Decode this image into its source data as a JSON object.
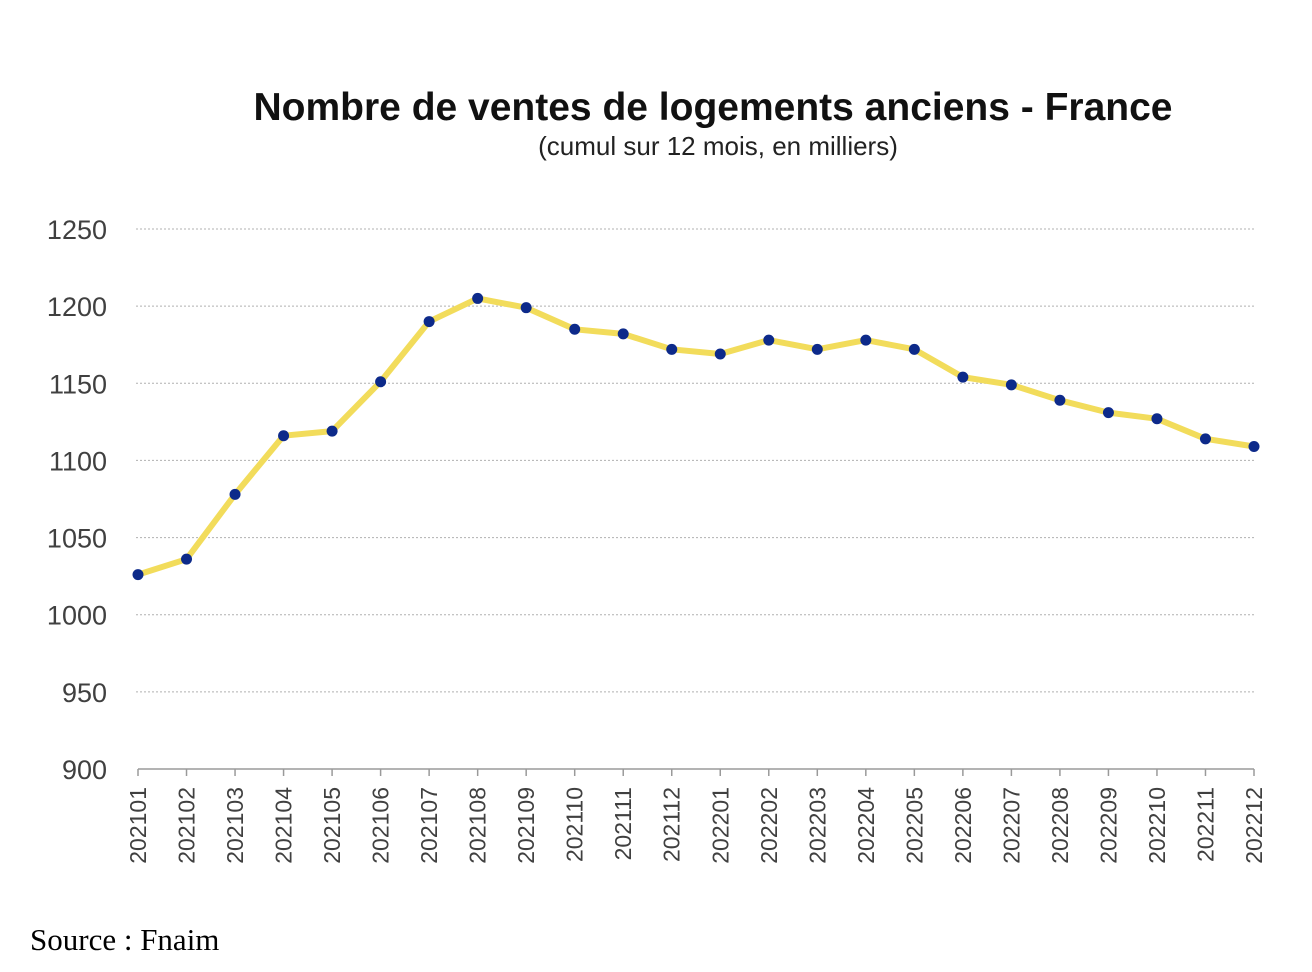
{
  "chart_data": {
    "type": "line",
    "title": "Nombre de ventes de logements anciens - France",
    "subtitle": "(cumul sur 12 mois, en milliers)",
    "xlabel": "",
    "ylabel": "",
    "categories": [
      "202101",
      "202102",
      "202103",
      "202104",
      "202105",
      "202106",
      "202107",
      "202108",
      "202109",
      "202110",
      "202111",
      "202112",
      "202201",
      "202202",
      "202203",
      "202204",
      "202205",
      "202206",
      "202207",
      "202208",
      "202209",
      "202210",
      "202211",
      "202212"
    ],
    "series": [
      {
        "values": [
          1026,
          1036,
          1078,
          1116,
          1119,
          1151,
          1190,
          1205,
          1199,
          1185,
          1182,
          1172,
          1169,
          1178,
          1172,
          1178,
          1172,
          1154,
          1149,
          1139,
          1131,
          1127,
          1114,
          1109
        ]
      }
    ],
    "ylim": [
      900,
      1250
    ],
    "yticks": [
      "900",
      "950",
      "1000",
      "1050",
      "1100",
      "1150",
      "1200",
      "1250"
    ],
    "grid": true,
    "legend": "none",
    "line_color": "#f2dc5b",
    "marker_color": "#0d2a8a"
  },
  "source": "Source : Fnaim"
}
